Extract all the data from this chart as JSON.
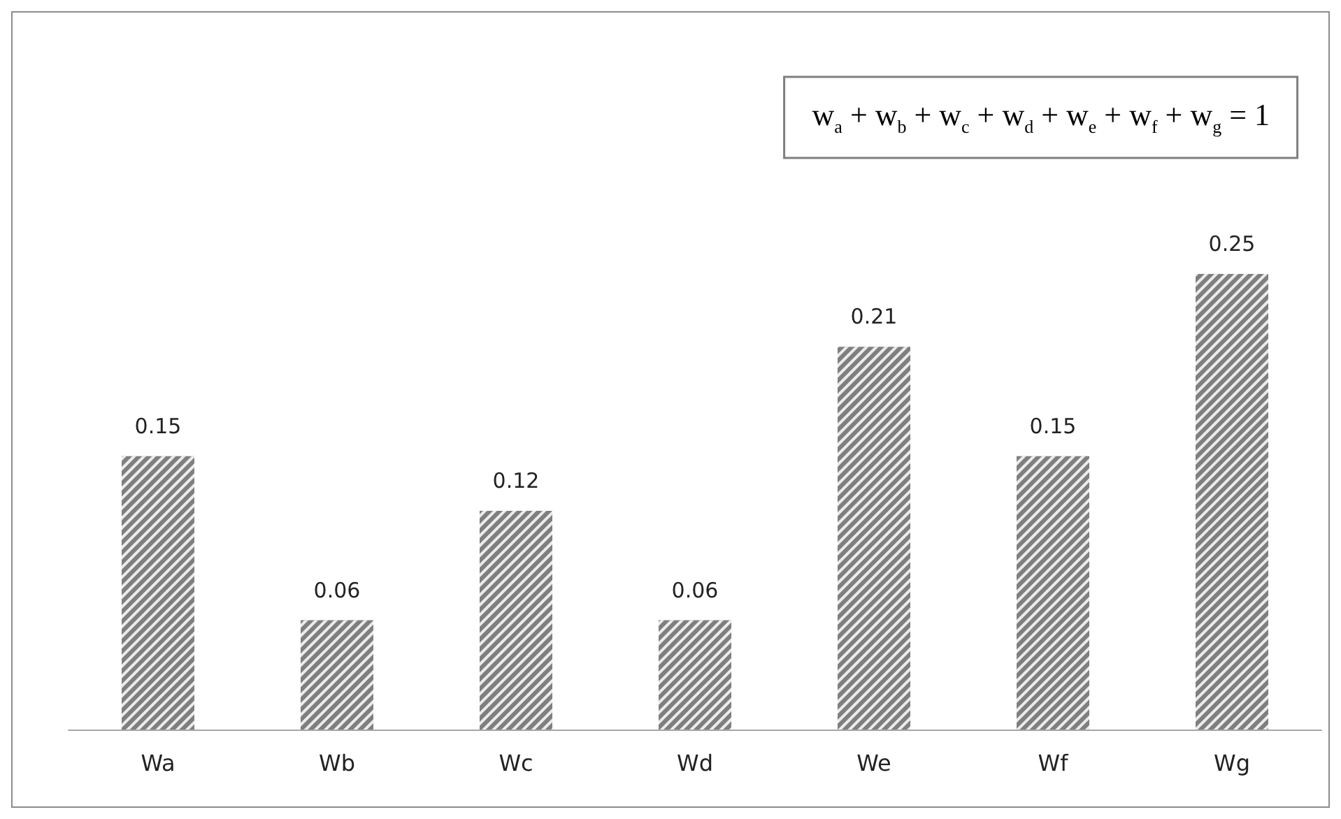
{
  "chart_data": {
    "type": "bar",
    "categories": [
      "Wa",
      "Wb",
      "Wc",
      "Wd",
      "We",
      "Wf",
      "Wg"
    ],
    "values": [
      0.15,
      0.06,
      0.12,
      0.06,
      0.21,
      0.15,
      0.25
    ],
    "color": "#7f7f7f",
    "data_labels": true,
    "grid": false,
    "tick_labels": "x",
    "annotations": [
      "w$_{a}$ + w$_{b}$ + w$_{c}$ + w$_{d}$ + w$_{e}$ + w$_{f}$ + w$_{g}$ = 1"
    ]
  }
}
